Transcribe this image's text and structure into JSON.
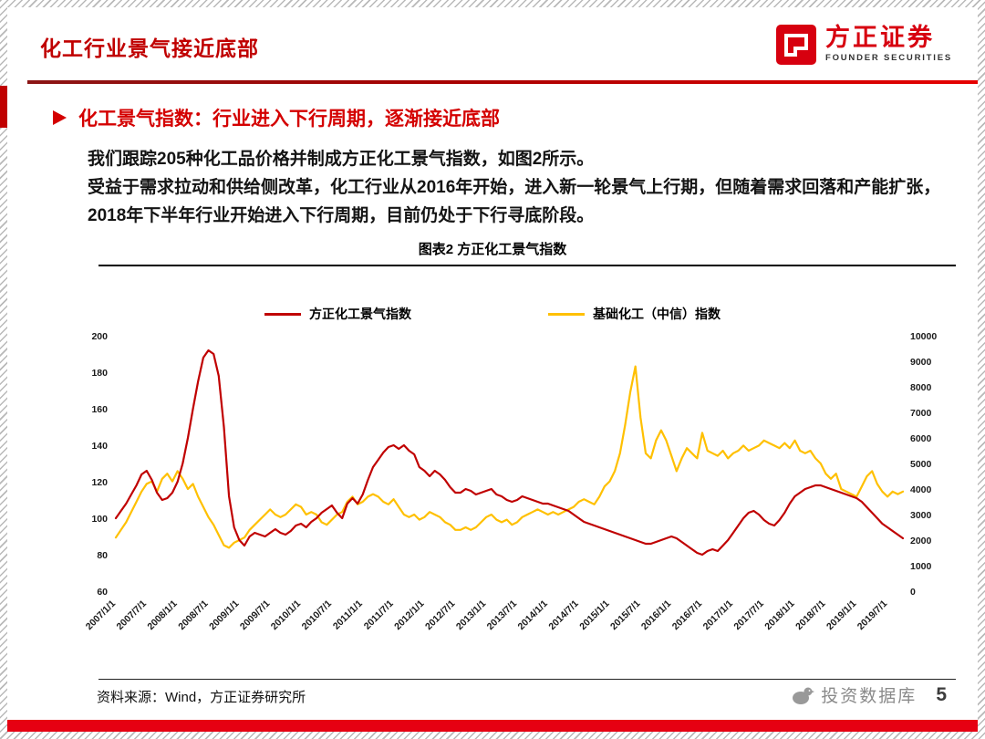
{
  "slide": {
    "title": "化工行业景气接近底部",
    "page_number": "5",
    "watermark": "投资数据库"
  },
  "logo": {
    "name": "方正证券",
    "subtitle": "FOUNDER SECURITIES"
  },
  "section": {
    "heading": "化工景气指数：行业进入下行周期，逐渐接近底部",
    "paragraph1": "我们跟踪205种化工品价格并制成方正化工景气指数，如图2所示。",
    "paragraph2": "受益于需求拉动和供给侧改革，化工行业从2016年开始，进入新一轮景气上行期，但随着需求回落和产能扩张，2018年下半年行业开始进入下行周期，目前仍处于下行寻底阶段。"
  },
  "figure": {
    "caption": "图表2 方正化工景气指数",
    "source": "资料来源：Wind，方正证券研究所"
  },
  "chart_data": {
    "type": "line",
    "title": "图表2 方正化工景气指数",
    "legend_position": "top",
    "grid": false,
    "start": "2007/1",
    "frequency": "monthly",
    "left_axis": {
      "min": 60,
      "max": 200,
      "ticks": [
        60,
        80,
        100,
        120,
        140,
        160,
        180,
        200
      ]
    },
    "right_axis": {
      "min": 0,
      "max": 10000,
      "ticks": [
        0,
        1000,
        2000,
        3000,
        4000,
        5000,
        6000,
        7000,
        8000,
        9000,
        10000
      ]
    },
    "x_ticks": [
      "2007/1/1",
      "2007/7/1",
      "2008/1/1",
      "2008/7/1",
      "2009/1/1",
      "2009/7/1",
      "2010/1/1",
      "2010/7/1",
      "2011/1/1",
      "2011/7/1",
      "2012/1/1",
      "2012/7/1",
      "2013/1/1",
      "2013/7/1",
      "2014/1/1",
      "2014/7/1",
      "2015/1/1",
      "2015/7/1",
      "2016/1/1",
      "2016/7/1",
      "2017/1/1",
      "2017/7/1",
      "2018/1/1",
      "2018/7/1",
      "2019/1/1",
      "2019/7/1"
    ],
    "series": [
      {
        "name": "方正化工景气指数",
        "axis": "left",
        "color": "#c00000",
        "values": [
          100,
          104,
          108,
          113,
          118,
          124,
          126,
          121,
          114,
          110,
          111,
          114,
          120,
          130,
          144,
          160,
          175,
          188,
          192,
          190,
          178,
          150,
          112,
          95,
          88,
          85,
          90,
          92,
          91,
          90,
          92,
          94,
          92,
          91,
          93,
          96,
          97,
          95,
          98,
          100,
          103,
          105,
          107,
          103,
          100,
          108,
          111,
          108,
          113,
          121,
          128,
          132,
          136,
          139,
          140,
          138,
          140,
          137,
          135,
          128,
          126,
          123,
          126,
          124,
          121,
          117,
          114,
          114,
          116,
          115,
          113,
          114,
          115,
          116,
          113,
          112,
          110,
          109,
          110,
          112,
          111,
          110,
          109,
          108,
          108,
          107,
          106,
          105,
          104,
          102,
          100,
          98,
          97,
          96,
          95,
          94,
          93,
          92,
          91,
          90,
          89,
          88,
          87,
          86,
          86,
          87,
          88,
          89,
          90,
          89,
          87,
          85,
          83,
          81,
          80,
          82,
          83,
          82,
          85,
          88,
          92,
          96,
          100,
          103,
          104,
          102,
          99,
          97,
          96,
          99,
          103,
          108,
          112,
          114,
          116,
          117,
          118,
          118,
          117,
          116,
          115,
          114,
          113,
          112,
          111,
          109,
          106,
          103,
          100,
          97,
          95,
          93,
          91,
          89
        ]
      },
      {
        "name": "基础化工（中信）指数",
        "axis": "right",
        "color": "#ffc000",
        "values": [
          2100,
          2400,
          2700,
          3100,
          3500,
          3900,
          4200,
          4300,
          3900,
          4400,
          4600,
          4300,
          4700,
          4400,
          4000,
          4200,
          3700,
          3300,
          2900,
          2600,
          2200,
          1800,
          1700,
          1900,
          2000,
          2100,
          2400,
          2600,
          2800,
          3000,
          3200,
          3000,
          2900,
          3000,
          3200,
          3400,
          3300,
          3000,
          3100,
          3000,
          2700,
          2600,
          2800,
          3000,
          3100,
          3500,
          3700,
          3400,
          3500,
          3700,
          3800,
          3700,
          3500,
          3400,
          3600,
          3300,
          3000,
          2900,
          3000,
          2800,
          2900,
          3100,
          3000,
          2900,
          2700,
          2600,
          2400,
          2400,
          2500,
          2400,
          2500,
          2700,
          2900,
          3000,
          2800,
          2700,
          2800,
          2600,
          2700,
          2900,
          3000,
          3100,
          3200,
          3100,
          3000,
          3100,
          3000,
          3100,
          3200,
          3300,
          3500,
          3600,
          3500,
          3400,
          3700,
          4100,
          4300,
          4700,
          5400,
          6500,
          7800,
          8800,
          6800,
          5400,
          5200,
          5900,
          6300,
          5900,
          5300,
          4700,
          5200,
          5600,
          5400,
          5200,
          6200,
          5500,
          5400,
          5300,
          5500,
          5200,
          5400,
          5500,
          5700,
          5500,
          5600,
          5700,
          5900,
          5800,
          5700,
          5600,
          5800,
          5600,
          5900,
          5500,
          5400,
          5500,
          5200,
          5000,
          4600,
          4400,
          4600,
          4000,
          3900,
          3800,
          3700,
          4100,
          4500,
          4700,
          4200,
          3900,
          3700,
          3900,
          3800,
          3900
        ]
      }
    ]
  }
}
